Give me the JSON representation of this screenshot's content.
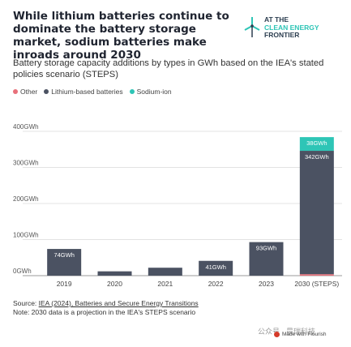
{
  "title": "While lithium batteries continue to dominate the battery storage market, sodium batteries make inroads around 2030",
  "subtitle": "Battery storage capacity additions by types in GWh based on the IEA's stated policies scenario (STEPS)",
  "logo": {
    "line1": "AT THE",
    "line2": "CLEAN ENERGY",
    "line3": "FRONTIER"
  },
  "colors": {
    "other": "#e8707a",
    "lithium": "#4b5262",
    "sodium": "#2ec5b6"
  },
  "chart_data": {
    "type": "bar",
    "stacked": true,
    "categories": [
      "2019",
      "2020",
      "2021",
      "2022",
      "2023",
      "2030 (STEPS)"
    ],
    "series": [
      {
        "name": "Other",
        "values": [
          0,
          0,
          0,
          0,
          0,
          4
        ]
      },
      {
        "name": "Lithium-based batteries",
        "values": [
          74,
          12,
          22,
          41,
          93,
          342
        ]
      },
      {
        "name": "Sodium-ion",
        "values": [
          0,
          0,
          0,
          0,
          0,
          38
        ]
      }
    ],
    "data_labels": [
      {
        "category": "2019",
        "series": "Lithium-based batteries",
        "text": "74GWh"
      },
      {
        "category": "2022",
        "series": "Lithium-based batteries",
        "text": "41GWh"
      },
      {
        "category": "2023",
        "series": "Lithium-based batteries",
        "text": "93GWh"
      },
      {
        "category": "2030 (STEPS)",
        "series": "Lithium-based batteries",
        "text": "342GWh"
      },
      {
        "category": "2030 (STEPS)",
        "series": "Sodium-ion",
        "text": "38GWh"
      }
    ],
    "yticks": [
      0,
      100,
      200,
      300,
      400
    ],
    "ytick_labels": [
      "0GWh",
      "100GWh",
      "200GWh",
      "300GWh",
      "400GWh"
    ],
    "ylim": [
      0,
      400
    ],
    "xlabel": "",
    "ylabel": "",
    "grid": true,
    "legend": "top-left"
  },
  "footer": {
    "source_prefix": "Source: ",
    "source_link": "IEA (2024), Batteries and Secure Energy Transitions",
    "note": "Note: 2030 data is a projection in the IEA's STEPS scenario"
  },
  "watermark": "公众号 · 晨瑞科技",
  "flourish": "Made with Flourish"
}
